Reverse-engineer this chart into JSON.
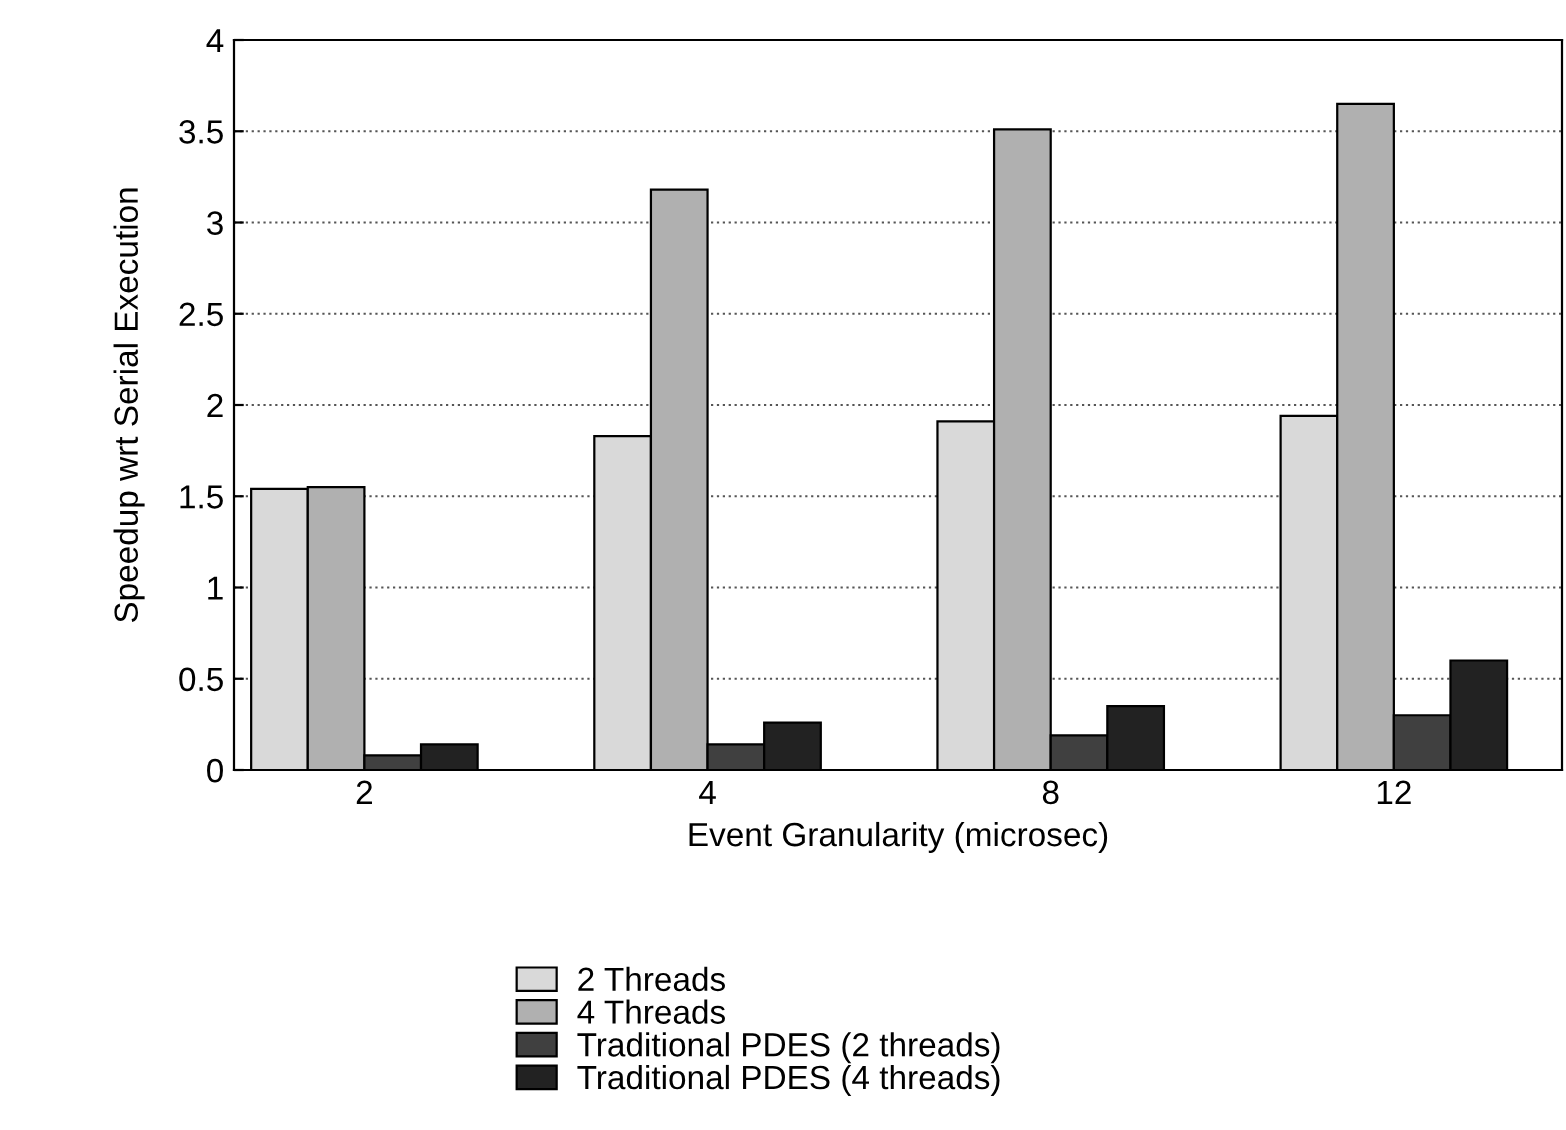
{
  "chart_data": {
    "type": "bar",
    "xlabel": "Event Granularity (microsec)",
    "ylabel": "Speedup wrt Serial Execution",
    "categories": [
      "2",
      "4",
      "8",
      "12"
    ],
    "series": [
      {
        "name": "2 Threads",
        "color": "#d9d9d9",
        "values": [
          1.54,
          1.83,
          1.91,
          1.94
        ]
      },
      {
        "name": "4 Threads",
        "color": "#b0b0b0",
        "values": [
          1.55,
          3.18,
          3.51,
          3.65
        ]
      },
      {
        "name": "Traditional PDES (2 threads)",
        "color": "#404040",
        "values": [
          0.08,
          0.14,
          0.19,
          0.3
        ]
      },
      {
        "name": "Traditional PDES (4 threads)",
        "color": "#222222",
        "values": [
          0.14,
          0.26,
          0.35,
          0.6
        ]
      }
    ],
    "ylim": [
      0,
      4
    ],
    "yticks": [
      0,
      0.5,
      1,
      1.5,
      2,
      2.5,
      3,
      3.5,
      4
    ],
    "grid": "y",
    "legend": "bottom"
  }
}
